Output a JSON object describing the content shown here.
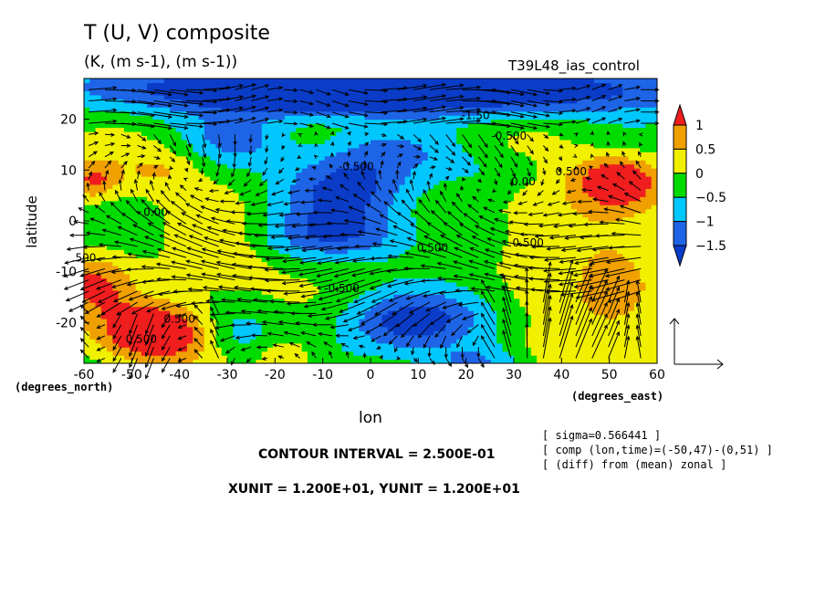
{
  "chart_data": {
    "type": "heatmap",
    "title": "T (U, V) composite",
    "units_label": "(K, (m s-1), (m s-1))",
    "experiment": "T39L48_ias_control",
    "xlabel": "lon",
    "ylabel": "latitude",
    "x_unit_label": "(degrees_east)",
    "y_unit_label": "(degrees_north)",
    "xlim": [
      -60,
      60
    ],
    "ylim": [
      -28,
      28
    ],
    "xticks": [
      -60,
      -50,
      -40,
      -30,
      -20,
      -10,
      0,
      10,
      20,
      30,
      40,
      50,
      60
    ],
    "xtick_labels": [
      "-60",
      "-50",
      "-40",
      "-30",
      "-20",
      "-10",
      "0",
      "10",
      "20",
      "30",
      "40",
      "50",
      "60"
    ],
    "yticks": [
      -20,
      -10,
      0,
      10,
      20
    ],
    "ytick_labels": [
      "-20",
      "-10",
      "0",
      "10",
      "20"
    ],
    "colorbar": {
      "levels": [
        -1.5,
        -1,
        -0.5,
        0,
        0.5,
        1
      ],
      "labels": [
        "−1.5",
        "−1",
        "−0.5",
        "0",
        "0.5",
        "1"
      ],
      "colors": [
        "#1e64e6",
        "#00c8ff",
        "#00dc00",
        "#f0f000",
        "#f0a000",
        "#f01e1e"
      ],
      "below_color": "#0a3cc8"
    },
    "contour_labels": [
      {
        "text": "0.500",
        "lon": -40,
        "lat": -20
      },
      {
        "text": "0.500",
        "lon": -48,
        "lat": -24
      },
      {
        "text": "0.00",
        "lon": -45,
        "lat": 1
      },
      {
        "text": "-0.500",
        "lon": -6,
        "lat": -14
      },
      {
        "text": "0.500",
        "lon": 13,
        "lat": -6
      },
      {
        "text": "0.500",
        "lon": 33,
        "lat": -5
      },
      {
        "text": "0.00",
        "lon": 32,
        "lat": 7
      },
      {
        "text": "0.500",
        "lon": 42,
        "lat": 9
      },
      {
        "text": "-1.50",
        "lon": 22,
        "lat": 20
      },
      {
        "text": "-0.500",
        "lon": 29,
        "lat": 16
      },
      {
        "text": "-0.500",
        "lon": -3,
        "lat": 10
      },
      {
        "text": ".500",
        "lon": -60,
        "lat": -8
      }
    ],
    "reference_vector": {
      "u": 12.0,
      "v": 12.0
    },
    "sigma": "[ sigma=0.566441 ]",
    "comp": "[ comp (lon,time)=(-50,47)-(0,51) ]",
    "diff": "[ (diff) from (mean) zonal ]",
    "contour_interval": "CONTOUR INTERVAL = 2.500E-01",
    "vector_units": "XUNIT = 1.200E+01, YUNIT = 1.200E+01"
  }
}
